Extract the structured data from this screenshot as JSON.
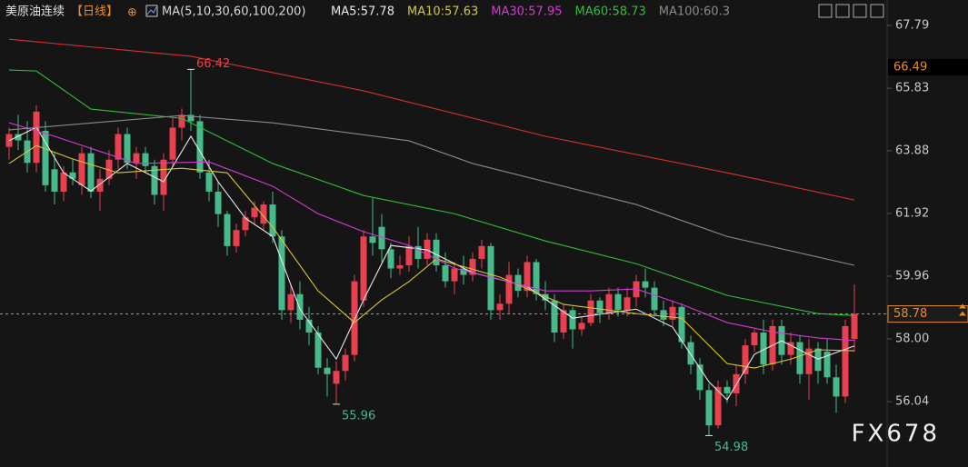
{
  "chart_data": {
    "type": "candlestick",
    "title": "美原油连续",
    "period": "【日线】",
    "indicator": "MA(5,10,30,60,100,200)",
    "ylim": [
      54.51,
      68.36
    ],
    "yticks": [
      67.79,
      65.83,
      63.88,
      61.92,
      59.96,
      {
        "value": 58,
        "label": "58.00"
      },
      56.04
    ],
    "up_color": "#e8404f",
    "down_color": "#47b98a",
    "ohlc": [
      [
        64.0,
        64.6,
        63.6,
        64.4
      ],
      [
        64.4,
        65.0,
        63.9,
        64.2
      ],
      [
        64.2,
        64.8,
        63.2,
        63.5
      ],
      [
        63.5,
        65.3,
        63.2,
        65.1
      ],
      [
        64.5,
        64.8,
        62.6,
        62.8
      ],
      [
        63.3,
        63.8,
        62.2,
        62.6
      ],
      [
        62.6,
        63.4,
        62.3,
        63.2
      ],
      [
        63.2,
        63.6,
        62.8,
        63.0
      ],
      [
        62.8,
        64.0,
        62.5,
        63.8
      ],
      [
        63.8,
        64.0,
        62.4,
        62.6
      ],
      [
        62.6,
        63.3,
        62.0,
        63.0
      ],
      [
        63.0,
        63.9,
        62.8,
        63.6
      ],
      [
        63.6,
        64.6,
        63.3,
        64.4
      ],
      [
        64.4,
        64.6,
        63.3,
        63.5
      ],
      [
        63.5,
        64.0,
        63.0,
        63.8
      ],
      [
        63.8,
        64.0,
        63.2,
        63.4
      ],
      [
        63.4,
        63.6,
        62.2,
        62.5
      ],
      [
        62.5,
        63.8,
        62.0,
        63.6
      ],
      [
        63.6,
        64.9,
        63.4,
        64.6
      ],
      [
        64.6,
        65.2,
        64.2,
        65.0
      ],
      [
        65.0,
        66.42,
        64.5,
        64.8
      ],
      [
        64.8,
        65.0,
        63.0,
        63.2
      ],
      [
        63.2,
        63.6,
        62.3,
        62.6
      ],
      [
        62.6,
        62.9,
        61.5,
        61.9
      ],
      [
        61.9,
        62.0,
        60.6,
        60.9
      ],
      [
        60.9,
        61.6,
        60.7,
        61.4
      ],
      [
        61.4,
        62.0,
        61.2,
        61.8
      ],
      [
        61.8,
        62.3,
        61.6,
        62.1
      ],
      [
        61.6,
        62.3,
        61.4,
        62.2
      ],
      [
        62.2,
        62.6,
        61.0,
        61.2
      ],
      [
        61.2,
        61.4,
        58.6,
        58.9
      ],
      [
        58.9,
        59.7,
        58.5,
        59.4
      ],
      [
        59.4,
        59.8,
        58.3,
        58.6
      ],
      [
        58.6,
        59.0,
        57.8,
        58.2
      ],
      [
        58.2,
        58.4,
        56.9,
        57.1
      ],
      [
        57.1,
        57.4,
        56.2,
        56.9
      ],
      [
        56.6,
        57.3,
        55.96,
        57.0
      ],
      [
        57.0,
        57.7,
        56.7,
        57.5
      ],
      [
        57.5,
        60.0,
        57.3,
        59.8
      ],
      [
        59.2,
        61.4,
        59.0,
        61.2
      ],
      [
        61.2,
        62.4,
        60.6,
        61.0
      ],
      [
        61.5,
        61.9,
        60.4,
        60.8
      ],
      [
        60.8,
        61.0,
        59.9,
        60.2
      ],
      [
        60.2,
        60.6,
        60.0,
        60.3
      ],
      [
        60.3,
        61.2,
        60.1,
        60.9
      ],
      [
        60.9,
        61.5,
        60.2,
        60.5
      ],
      [
        60.5,
        61.3,
        60.3,
        61.1
      ],
      [
        61.1,
        61.3,
        60.1,
        60.3
      ],
      [
        60.3,
        60.7,
        59.6,
        59.8
      ],
      [
        59.8,
        60.4,
        59.4,
        60.2
      ],
      [
        60.2,
        60.6,
        59.7,
        60.0
      ],
      [
        60.0,
        60.7,
        59.8,
        60.5
      ],
      [
        60.5,
        61.1,
        60.2,
        60.9
      ],
      [
        60.9,
        61.0,
        58.6,
        58.9
      ],
      [
        58.9,
        59.4,
        58.6,
        59.1
      ],
      [
        59.1,
        60.4,
        58.8,
        60.0
      ],
      [
        60.0,
        60.2,
        59.3,
        59.5
      ],
      [
        59.5,
        60.6,
        59.3,
        60.4
      ],
      [
        60.4,
        60.5,
        59.2,
        59.4
      ],
      [
        59.4,
        59.8,
        58.9,
        59.2
      ],
      [
        59.2,
        59.4,
        57.9,
        58.2
      ],
      [
        58.2,
        59.1,
        58.0,
        58.9
      ],
      [
        58.9,
        59.0,
        57.7,
        58.3
      ],
      [
        58.3,
        58.7,
        58.1,
        58.5
      ],
      [
        58.5,
        59.4,
        58.4,
        59.2
      ],
      [
        59.2,
        59.3,
        58.5,
        58.8
      ],
      [
        58.8,
        59.6,
        58.6,
        59.4
      ],
      [
        59.4,
        59.6,
        58.7,
        58.9
      ],
      [
        58.9,
        59.6,
        58.7,
        59.3
      ],
      [
        59.3,
        60.0,
        59.0,
        59.8
      ],
      [
        59.8,
        60.2,
        59.3,
        59.6
      ],
      [
        59.6,
        59.8,
        58.7,
        58.9
      ],
      [
        58.9,
        59.2,
        58.4,
        58.6
      ],
      [
        58.6,
        59.2,
        58.4,
        59.0
      ],
      [
        59.0,
        59.1,
        57.7,
        57.9
      ],
      [
        57.9,
        58.1,
        56.9,
        57.2
      ],
      [
        57.2,
        57.4,
        56.1,
        56.4
      ],
      [
        56.4,
        56.6,
        54.98,
        55.3
      ],
      [
        55.3,
        56.7,
        55.2,
        56.5
      ],
      [
        56.5,
        56.7,
        56.0,
        56.3
      ],
      [
        56.3,
        57.2,
        55.9,
        56.9
      ],
      [
        56.9,
        58.0,
        56.6,
        57.8
      ],
      [
        57.8,
        58.3,
        57.6,
        58.2
      ],
      [
        58.2,
        58.6,
        56.9,
        57.2
      ],
      [
        57.2,
        58.6,
        57.0,
        58.4
      ],
      [
        58.4,
        58.6,
        57.2,
        57.5
      ],
      [
        57.5,
        58.2,
        57.2,
        57.9
      ],
      [
        57.9,
        58.1,
        56.6,
        56.9
      ],
      [
        56.9,
        58.0,
        56.1,
        57.7
      ],
      [
        57.7,
        57.9,
        56.6,
        57.0
      ],
      [
        57.6,
        58.0,
        56.6,
        56.8
      ],
      [
        56.8,
        57.2,
        55.7,
        56.2
      ],
      [
        56.2,
        58.6,
        56.0,
        58.4
      ],
      [
        58.0,
        59.7,
        57.6,
        58.78
      ]
    ],
    "series": [
      {
        "name": "MA5:57.78",
        "color": "#e8e8e8",
        "x": [
          0,
          3,
          6,
          9,
          13,
          17,
          20,
          23,
          26,
          29,
          32,
          36,
          39,
          42,
          46,
          51,
          57,
          62,
          69,
          73,
          77,
          79,
          82,
          85,
          89,
          93
        ],
        "values": [
          64.19,
          64.61,
          63.19,
          62.62,
          63.48,
          62.91,
          64.33,
          62.91,
          61.77,
          61.2,
          58.93,
          57.37,
          59.22,
          60.92,
          60.78,
          60.07,
          59.64,
          58.65,
          58.93,
          58.37,
          56.66,
          56.1,
          57.52,
          57.94,
          57.37,
          57.78
        ]
      },
      {
        "name": "MA10:57.63",
        "color": "#d8c63a",
        "x": [
          0,
          3,
          7,
          12,
          19,
          24,
          29,
          34,
          38,
          41,
          44,
          47,
          54,
          61,
          69,
          74,
          79,
          82,
          86,
          89,
          93
        ],
        "values": [
          63.48,
          64.04,
          63.62,
          63.19,
          63.33,
          63.19,
          61.49,
          59.5,
          58.51,
          59.22,
          59.79,
          60.5,
          59.93,
          59.08,
          58.79,
          58.65,
          57.23,
          57.09,
          57.37,
          57.66,
          57.63
        ]
      },
      {
        "name": "MA30:57.95",
        "color": "#d43ad4",
        "x": [
          0,
          5,
          14,
          22,
          29,
          34,
          39,
          44,
          49,
          59,
          64,
          69,
          74,
          79,
          84,
          89,
          93
        ],
        "values": [
          64.75,
          64.33,
          63.48,
          63.53,
          62.77,
          61.91,
          61.35,
          60.92,
          60.21,
          59.5,
          59.5,
          59.56,
          59.08,
          58.51,
          58.22,
          58.03,
          57.95
        ]
      },
      {
        "name": "MA60:58.73",
        "color": "#2fbf3a",
        "x": [
          0,
          3,
          9,
          19,
          29,
          39,
          49,
          59,
          69,
          79,
          89,
          93
        ],
        "values": [
          66.4,
          66.37,
          65.18,
          64.89,
          63.48,
          62.48,
          61.91,
          61.06,
          60.35,
          59.36,
          58.79,
          58.73
        ]
      },
      {
        "name": "MA100:60.3",
        "color": "#8a8a8a",
        "x": [
          0,
          19,
          29,
          44,
          51,
          69,
          79,
          93
        ],
        "values": [
          64.53,
          64.98,
          64.75,
          64.19,
          63.48,
          62.2,
          61.2,
          60.3
        ]
      },
      {
        "color": "#d83030",
        "x": [
          0,
          20,
          39,
          59,
          79,
          93
        ],
        "values": [
          67.36,
          66.83,
          65.75,
          64.33,
          63.19,
          62.34
        ]
      }
    ],
    "annotations": [
      66.42,
      55.96,
      54.98
    ],
    "last_price": 58.78,
    "marker_price": 66.49,
    "watermark": "FX678"
  }
}
